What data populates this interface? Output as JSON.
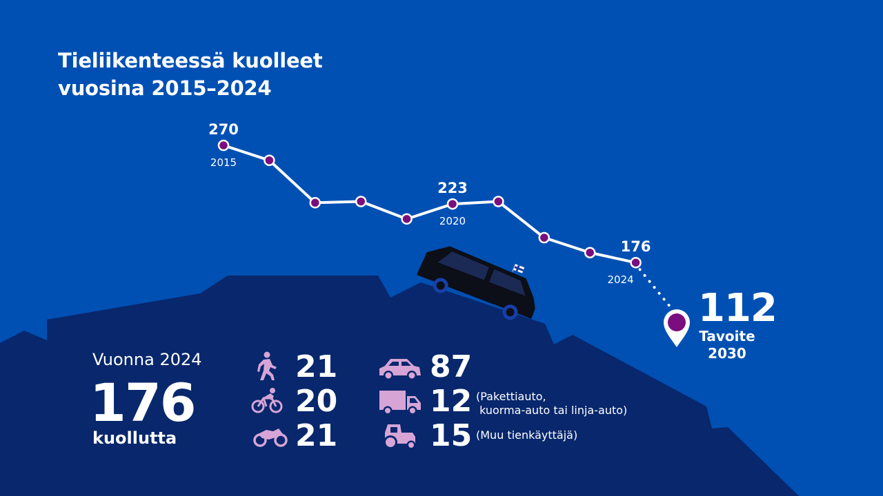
{
  "title": {
    "line1": "Tieliikenteessä kuolleet",
    "line2": "vuosina 2015–2024"
  },
  "colors": {
    "sky": "#0050b4",
    "ridge": "#0b3186",
    "mountain": "#08276c",
    "line": "#ffffff",
    "point": "#7a0e7e",
    "icon": "#d6a5d6",
    "text": "#ffffff"
  },
  "chart_data": {
    "type": "line",
    "x": [
      2015,
      2016,
      2017,
      2018,
      2019,
      2020,
      2021,
      2022,
      2023,
      2024
    ],
    "values": [
      270,
      258,
      224,
      225,
      211,
      223,
      225,
      196,
      184,
      176
    ],
    "labeled_points": [
      {
        "year": 2015,
        "value": 270
      },
      {
        "year": 2020,
        "value": 223
      },
      {
        "year": 2024,
        "value": 176
      }
    ],
    "target": {
      "value": 112,
      "label": "Tavoite",
      "year": 2030
    },
    "grid": false,
    "axes_visible": false
  },
  "stats": {
    "year_label": "Vuonna 2024",
    "total": "176",
    "unit": "kuollutta",
    "categories": [
      {
        "icon": "pedestrian-icon",
        "value": "21"
      },
      {
        "icon": "bicycle-icon",
        "value": "20"
      },
      {
        "icon": "motorcycle-icon",
        "value": "21"
      },
      {
        "icon": "car-icon",
        "value": "87"
      },
      {
        "icon": "truck-icon",
        "value": "12",
        "note": "(Pakettiauto,\n kuorma-auto tai linja-auto)"
      },
      {
        "icon": "tractor-icon",
        "value": "15",
        "note": "(Muu tienkäyttäjä)"
      }
    ]
  }
}
